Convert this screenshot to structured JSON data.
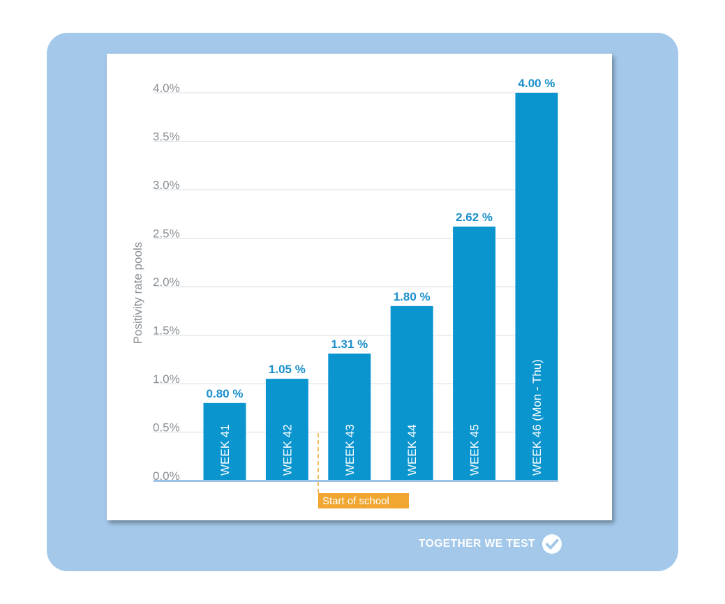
{
  "colors": {
    "frame": "#a3c8ea",
    "bar": "#0a95cf",
    "value_label": "#1a8fcb",
    "axis_text": "#8a8f94",
    "grid": "#d8dee4",
    "baseline": "#9cc3e6",
    "annotation": "#f0a630",
    "brand_text": "#ffffff"
  },
  "brand": {
    "text": "TOGETHER WE TEST",
    "icon": "check-circle-icon"
  },
  "chart_data": {
    "type": "bar",
    "categories": [
      "WEEK 41",
      "WEEK 42",
      "WEEK 43",
      "WEEK 44",
      "WEEK 45",
      "WEEK 46 (Mon - Thu)"
    ],
    "values": [
      0.8,
      1.05,
      1.31,
      1.8,
      2.62,
      4.0
    ],
    "value_labels": [
      "0.80 %",
      "1.05 %",
      "1.31 %",
      "1.80 %",
      "2.62 %",
      "4.00 %"
    ],
    "ylabel": "Positivity rate pools",
    "xlabel": "",
    "ylim": [
      0,
      4.0
    ],
    "yticks": [
      0.0,
      0.5,
      1.0,
      1.5,
      2.0,
      2.5,
      3.0,
      3.5,
      4.0
    ],
    "ytick_labels": [
      "0.0%",
      "0.5%",
      "1.0%",
      "1.5%",
      "2.0%",
      "2.5%",
      "3.0%",
      "3.5%",
      "4.0%"
    ],
    "grid": true,
    "category_labels_inside_bars": true,
    "annotation": {
      "text": "Start of school",
      "between_categories": [
        "WEEK 42",
        "WEEK 43"
      ]
    }
  }
}
